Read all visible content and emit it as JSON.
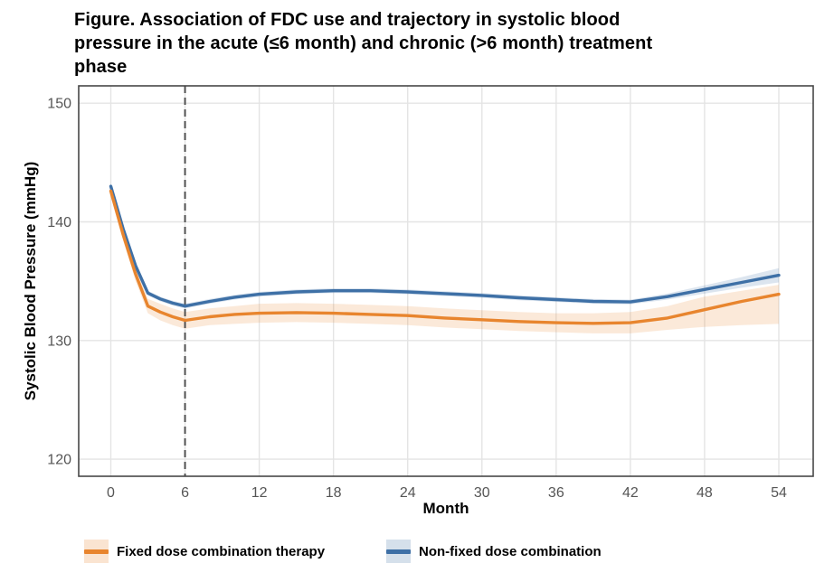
{
  "title": {
    "lines": [
      "Figure. Association of FDC use and trajectory in systolic blood",
      "pressure in the acute (≤6 month) and chronic (>6 month) treatment",
      "phase"
    ]
  },
  "chart_data": {
    "type": "line",
    "title": "Figure. Association of FDC use and trajectory in systolic blood pressure in the acute (≤6 month) and chronic (>6 month) treatment phase",
    "xlabel": "Month",
    "ylabel": "Systolic Blood Pressure (mmHg)",
    "xticks": [
      0,
      6,
      12,
      18,
      24,
      30,
      36,
      42,
      48,
      54
    ],
    "yticks": [
      120,
      130,
      140,
      150
    ],
    "xlim": [
      -2.6,
      56.7
    ],
    "ylim": [
      118.5,
      151.5
    ],
    "grid": true,
    "legend_position": "bottom",
    "vline": {
      "x": 6,
      "style": "dashed",
      "color": "#4a4a4a",
      "meaning": "acute/chronic phase boundary"
    },
    "x": [
      0,
      1,
      2,
      3,
      4,
      5,
      6,
      8,
      10,
      12,
      15,
      18,
      21,
      24,
      27,
      30,
      33,
      36,
      39,
      42,
      45,
      48,
      51,
      54
    ],
    "series": [
      {
        "name": "Fixed dose combination therapy",
        "color": "#E8852E",
        "ribbon_opacity": 0.18,
        "values": [
          142.6,
          138.9,
          135.6,
          132.9,
          132.4,
          132.0,
          131.7,
          132.0,
          132.2,
          132.3,
          132.35,
          132.3,
          132.2,
          132.1,
          131.9,
          131.75,
          131.6,
          131.5,
          131.45,
          131.5,
          131.9,
          132.6,
          133.3,
          133.9
        ],
        "ci_low": [
          142.2,
          138.4,
          135.0,
          132.3,
          131.7,
          131.3,
          131.0,
          131.3,
          131.4,
          131.5,
          131.55,
          131.5,
          131.4,
          131.3,
          131.1,
          130.95,
          130.8,
          130.7,
          130.6,
          130.6,
          130.9,
          131.15,
          131.3,
          131.4
        ],
        "ci_high": [
          143.0,
          139.4,
          136.2,
          133.5,
          133.1,
          132.7,
          132.4,
          132.7,
          132.9,
          133.1,
          133.15,
          133.1,
          133.0,
          132.9,
          132.7,
          132.55,
          132.4,
          132.3,
          132.3,
          132.4,
          132.9,
          133.7,
          134.2,
          134.7
        ]
      },
      {
        "name": "Non-fixed dose combination",
        "color": "#3E70A6",
        "ribbon_opacity": 0.18,
        "values": [
          143.0,
          139.4,
          136.3,
          134.0,
          133.5,
          133.15,
          132.9,
          133.3,
          133.65,
          133.9,
          134.1,
          134.2,
          134.2,
          134.1,
          133.95,
          133.8,
          133.6,
          133.45,
          133.3,
          133.25,
          133.7,
          134.3,
          134.9,
          135.5
        ],
        "ci_low": [
          142.75,
          139.15,
          136.05,
          133.8,
          133.3,
          132.95,
          132.7,
          133.1,
          133.45,
          133.7,
          133.9,
          134.0,
          134.0,
          133.9,
          133.75,
          133.6,
          133.4,
          133.25,
          133.1,
          133.05,
          133.45,
          133.95,
          134.45,
          134.9
        ],
        "ci_high": [
          143.3,
          139.65,
          136.55,
          134.2,
          133.7,
          133.35,
          133.1,
          133.5,
          133.85,
          134.1,
          134.3,
          134.4,
          134.4,
          134.3,
          134.15,
          134.0,
          133.8,
          133.65,
          133.5,
          133.45,
          133.95,
          134.65,
          135.35,
          136.1
        ]
      }
    ]
  },
  "style": {
    "gridline_color": "#e4e4e4",
    "border_color": "#474747",
    "tick_label_color": "#555555",
    "background": "#ffffff"
  }
}
